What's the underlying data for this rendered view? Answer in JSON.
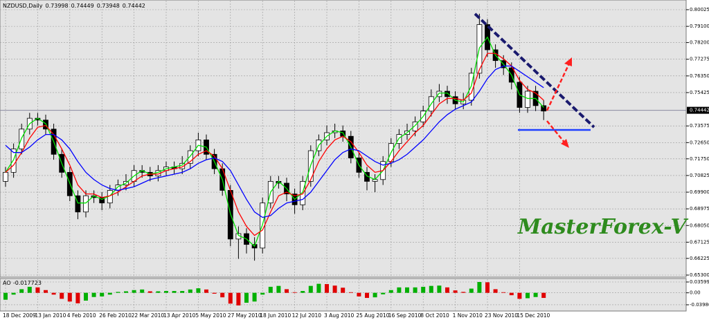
{
  "watermark": "MasterForex-V",
  "chart_data": [
    {
      "type": "candlestick",
      "title": "NZDUSD,Daily",
      "ohlc_header": [
        0.73998,
        0.74449,
        0.73948,
        0.74442
      ],
      "categories": [
        "18 Dec 2009",
        null,
        null,
        null,
        "13 Jan 2010",
        null,
        null,
        null,
        "4 Feb 2010",
        null,
        null,
        null,
        "26 Feb 2010",
        null,
        null,
        null,
        "22 Mar 2010",
        null,
        null,
        null,
        "13 Apr 2010",
        null,
        null,
        null,
        "5 May 2010",
        null,
        null,
        null,
        "27 May 2010",
        null,
        null,
        null,
        "18 Jun 2010",
        null,
        null,
        null,
        "12 Jul 2010",
        null,
        null,
        null,
        "3 Aug 2010",
        null,
        null,
        null,
        "25 Aug 2010",
        null,
        null,
        null,
        "16 Sep 2010",
        null,
        null,
        null,
        "8 Oct 2010",
        null,
        null,
        null,
        "1 Nov 2010",
        null,
        null,
        null,
        "23 Nov 2010",
        null,
        null,
        null,
        "15 Dec 2010",
        null,
        null,
        null
      ],
      "candles": [
        [
          0.705,
          0.713,
          0.702,
          0.71
        ],
        [
          0.71,
          0.726,
          0.707,
          0.723
        ],
        [
          0.723,
          0.737,
          0.72,
          0.734
        ],
        [
          0.734,
          0.743,
          0.731,
          0.74
        ],
        [
          0.74,
          0.743,
          0.736,
          0.739
        ],
        [
          0.739,
          0.742,
          0.731,
          0.734
        ],
        [
          0.734,
          0.737,
          0.717,
          0.72
        ],
        [
          0.72,
          0.723,
          0.707,
          0.71
        ],
        [
          0.71,
          0.713,
          0.694,
          0.697
        ],
        [
          0.697,
          0.7,
          0.684,
          0.688
        ],
        [
          0.688,
          0.7,
          0.685,
          0.697
        ],
        [
          0.697,
          0.7,
          0.693,
          0.696
        ],
        [
          0.696,
          0.699,
          0.689,
          0.693
        ],
        [
          0.693,
          0.703,
          0.69,
          0.7
        ],
        [
          0.7,
          0.706,
          0.697,
          0.703
        ],
        [
          0.703,
          0.709,
          0.7,
          0.705
        ],
        [
          0.705,
          0.714,
          0.702,
          0.711
        ],
        [
          0.711,
          0.714,
          0.707,
          0.71
        ],
        [
          0.71,
          0.713,
          0.705,
          0.708
        ],
        [
          0.708,
          0.714,
          0.705,
          0.711
        ],
        [
          0.711,
          0.716,
          0.708,
          0.713
        ],
        [
          0.713,
          0.716,
          0.709,
          0.712
        ],
        [
          0.712,
          0.719,
          0.709,
          0.715
        ],
        [
          0.715,
          0.725,
          0.712,
          0.722
        ],
        [
          0.722,
          0.732,
          0.719,
          0.728
        ],
        [
          0.728,
          0.731,
          0.717,
          0.72
        ],
        [
          0.72,
          0.723,
          0.709,
          0.712
        ],
        [
          0.712,
          0.715,
          0.697,
          0.7
        ],
        [
          0.7,
          0.703,
          0.669,
          0.673
        ],
        [
          0.673,
          0.68,
          0.662,
          0.676
        ],
        [
          0.676,
          0.679,
          0.665,
          0.67
        ],
        [
          0.67,
          0.674,
          0.661,
          0.668
        ],
        [
          0.668,
          0.696,
          0.665,
          0.693
        ],
        [
          0.693,
          0.708,
          0.69,
          0.705
        ],
        [
          0.705,
          0.708,
          0.701,
          0.704
        ],
        [
          0.704,
          0.707,
          0.694,
          0.698
        ],
        [
          0.698,
          0.701,
          0.687,
          0.692
        ],
        [
          0.692,
          0.708,
          0.689,
          0.705
        ],
        [
          0.705,
          0.725,
          0.702,
          0.722
        ],
        [
          0.722,
          0.731,
          0.719,
          0.728
        ],
        [
          0.728,
          0.736,
          0.725,
          0.732
        ],
        [
          0.732,
          0.737,
          0.729,
          0.733
        ],
        [
          0.733,
          0.736,
          0.727,
          0.73
        ],
        [
          0.73,
          0.733,
          0.715,
          0.718
        ],
        [
          0.718,
          0.721,
          0.707,
          0.71
        ],
        [
          0.71,
          0.713,
          0.7,
          0.705
        ],
        [
          0.705,
          0.709,
          0.699,
          0.706
        ],
        [
          0.706,
          0.719,
          0.703,
          0.716
        ],
        [
          0.716,
          0.729,
          0.713,
          0.726
        ],
        [
          0.726,
          0.734,
          0.723,
          0.731
        ],
        [
          0.731,
          0.737,
          0.728,
          0.733
        ],
        [
          0.733,
          0.741,
          0.73,
          0.738
        ],
        [
          0.738,
          0.747,
          0.735,
          0.744
        ],
        [
          0.744,
          0.756,
          0.741,
          0.752
        ],
        [
          0.752,
          0.759,
          0.749,
          0.755
        ],
        [
          0.755,
          0.758,
          0.748,
          0.752
        ],
        [
          0.752,
          0.755,
          0.745,
          0.748
        ],
        [
          0.748,
          0.754,
          0.745,
          0.75
        ],
        [
          0.75,
          0.768,
          0.747,
          0.765
        ],
        [
          0.765,
          0.798,
          0.762,
          0.792
        ],
        [
          0.792,
          0.795,
          0.774,
          0.778
        ],
        [
          0.778,
          0.781,
          0.768,
          0.772
        ],
        [
          0.772,
          0.775,
          0.764,
          0.768
        ],
        [
          0.768,
          0.771,
          0.756,
          0.76
        ],
        [
          0.76,
          0.763,
          0.743,
          0.746
        ],
        [
          0.746,
          0.758,
          0.743,
          0.755
        ],
        [
          0.755,
          0.758,
          0.744,
          0.747
        ],
        [
          0.747,
          0.75,
          0.739,
          0.744
        ]
      ],
      "series": [
        {
          "color": "#00e000",
          "values": [
            0.71,
            0.717,
            0.729,
            0.737,
            0.74,
            0.737,
            0.727,
            0.715,
            0.704,
            0.693,
            0.693,
            0.697,
            0.695,
            0.697,
            0.702,
            0.704,
            0.708,
            0.711,
            0.709,
            0.71,
            0.712,
            0.713,
            0.714,
            0.719,
            0.725,
            0.724,
            0.716,
            0.706,
            0.687,
            0.675,
            0.673,
            0.669,
            0.681,
            0.699,
            0.705,
            0.701,
            0.695,
            0.699,
            0.714,
            0.725,
            0.73,
            0.733,
            0.732,
            0.724,
            0.714,
            0.708,
            0.706,
            0.711,
            0.721,
            0.729,
            0.732,
            0.736,
            0.741,
            0.748,
            0.754,
            0.754,
            0.75,
            0.749,
            0.758,
            0.779,
            0.785,
            0.775,
            0.77,
            0.764,
            0.753,
            0.751,
            0.751,
            0.746
          ]
        },
        {
          "color": "#ff0000",
          "values": [
            0.71,
            0.714,
            0.721,
            0.729,
            0.735,
            0.736,
            0.731,
            0.723,
            0.714,
            0.703,
            0.698,
            0.698,
            0.696,
            0.697,
            0.699,
            0.702,
            0.705,
            0.708,
            0.709,
            0.709,
            0.711,
            0.712,
            0.713,
            0.716,
            0.72,
            0.722,
            0.719,
            0.712,
            0.7,
            0.688,
            0.68,
            0.675,
            0.678,
            0.688,
            0.697,
            0.699,
            0.697,
            0.698,
            0.706,
            0.716,
            0.723,
            0.728,
            0.73,
            0.727,
            0.721,
            0.714,
            0.71,
            0.711,
            0.716,
            0.722,
            0.727,
            0.732,
            0.736,
            0.742,
            0.748,
            0.751,
            0.751,
            0.75,
            0.754,
            0.767,
            0.776,
            0.776,
            0.773,
            0.769,
            0.761,
            0.756,
            0.754,
            0.75
          ]
        },
        {
          "color": "#0000ff",
          "values": [
            0.725,
            0.721,
            0.721,
            0.724,
            0.728,
            0.731,
            0.731,
            0.728,
            0.723,
            0.716,
            0.71,
            0.706,
            0.703,
            0.701,
            0.7,
            0.701,
            0.702,
            0.704,
            0.706,
            0.707,
            0.708,
            0.709,
            0.71,
            0.712,
            0.715,
            0.717,
            0.718,
            0.716,
            0.711,
            0.703,
            0.695,
            0.688,
            0.685,
            0.686,
            0.69,
            0.693,
            0.694,
            0.695,
            0.699,
            0.705,
            0.711,
            0.717,
            0.721,
            0.723,
            0.722,
            0.719,
            0.716,
            0.714,
            0.715,
            0.717,
            0.72,
            0.724,
            0.728,
            0.733,
            0.738,
            0.742,
            0.745,
            0.747,
            0.749,
            0.755,
            0.762,
            0.767,
            0.769,
            0.769,
            0.766,
            0.763,
            0.76,
            0.757
          ]
        }
      ],
      "ylim": [
        0.65223,
        0.80562
      ],
      "yticks": [
        0.80025,
        {
          "value": 0.791,
          "label": "0.79100"
        },
        {
          "value": 0.782,
          "label": "0.78200"
        },
        0.77275,
        {
          "value": 0.7635,
          "label": "0.76350"
        },
        0.75425,
        0.73575,
        {
          "value": 0.7265,
          "label": "0.72650"
        },
        {
          "value": 0.7175,
          "label": "0.71750"
        },
        0.70825,
        {
          "value": 0.699,
          "label": "0.69900"
        },
        0.68975,
        {
          "value": 0.6805,
          "label": "0.68050"
        },
        0.67125,
        0.66225,
        {
          "value": 0.653,
          "label": "0.65300"
        }
      ],
      "current_price": 0.74442,
      "grid": true,
      "up_color": "#ffffff",
      "down_color": "#000000"
    },
    {
      "type": "histogram",
      "title": "AO",
      "current_value": -0.017723,
      "values": [
        -0.023,
        -0.006,
        0.012,
        0.02,
        0.018,
        0.009,
        -0.006,
        -0.02,
        -0.029,
        -0.035,
        -0.026,
        -0.014,
        -0.012,
        -0.006,
        0.003,
        0.005,
        0.009,
        0.011,
        0.005,
        0.005,
        0.006,
        0.006,
        0.006,
        0.011,
        0.015,
        0.011,
        -0.003,
        -0.015,
        -0.036,
        -0.042,
        -0.033,
        -0.029,
        -0.006,
        0.02,
        0.023,
        0.012,
        0.002,
        0.006,
        0.023,
        0.03,
        0.029,
        0.024,
        0.017,
        0.002,
        -0.012,
        -0.017,
        -0.015,
        -0.005,
        0.009,
        0.018,
        0.018,
        0.018,
        0.02,
        0.023,
        0.024,
        0.018,
        0.008,
        0.003,
        0.014,
        0.036,
        0.035,
        0.012,
        0.002,
        -0.008,
        -0.02,
        -0.018,
        -0.014,
        -0.017
      ],
      "ylim": [
        -0.0606,
        0.0475
      ],
      "yticks": [
        0.035999,
        {
          "value": 0,
          "label": "0.00"
        },
        -0.03986
      ],
      "grid": true,
      "up_color": "#00b000",
      "down_color": "#e00000"
    }
  ]
}
